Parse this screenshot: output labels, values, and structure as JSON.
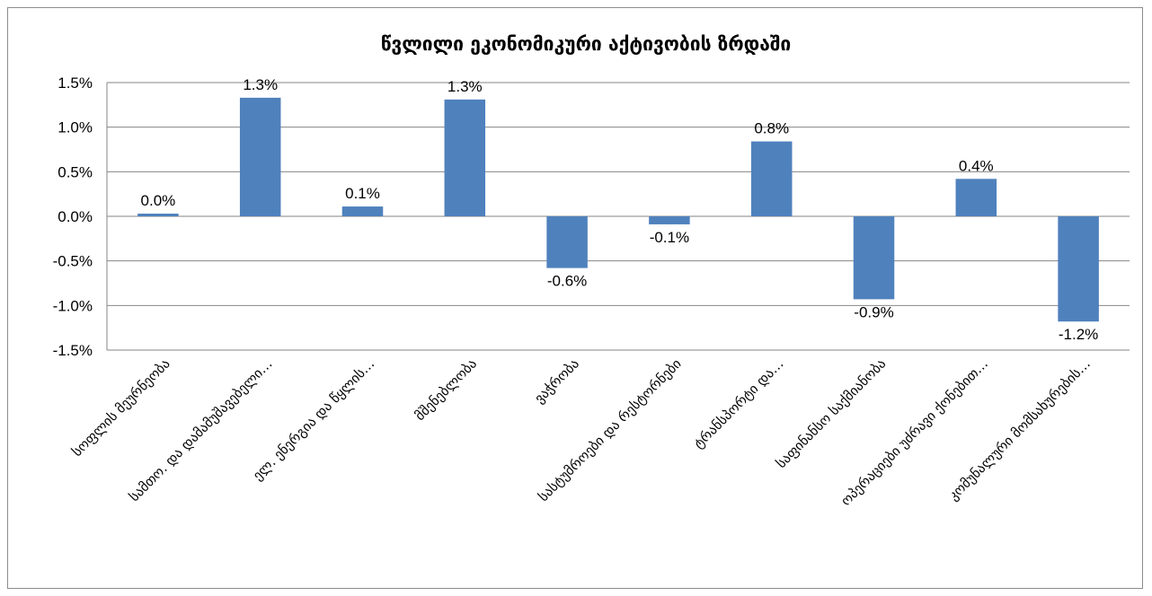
{
  "chart_data": {
    "type": "bar",
    "title": "წვლილი ეკონომიკური აქტივობის ზრდაში",
    "categories": [
      "სოფლის მეურნეობა",
      "სამთო. და დამამუშავებელი…",
      "ელ. ენერგია და წყლის…",
      "მშენებლობა",
      "ვაჭრობა",
      "სასტუმროები და რესტორნები",
      "ტრანსპორტი და…",
      "საფინანსო საქმიანობა",
      "ოპერაციები უძრავი ქონებით…",
      "კომუნალური მომსახურების…"
    ],
    "values": [
      0.03,
      1.33,
      0.11,
      1.31,
      -0.58,
      -0.09,
      0.84,
      -0.93,
      0.42,
      -1.18
    ],
    "data_labels": [
      "0.0%",
      "1.3%",
      "0.1%",
      "1.3%",
      "-0.6%",
      "-0.1%",
      "0.8%",
      "-0.9%",
      "0.4%",
      "-1.2%"
    ],
    "yticks": [
      "1.5%",
      "1.0%",
      "0.5%",
      "0.0%",
      "-0.5%",
      "-1.0%",
      "-1.5%"
    ],
    "ylim": [
      -1.5,
      1.5
    ],
    "grid": true,
    "legend": "none",
    "colors": {
      "bar": "#4f81bd",
      "grid": "#868686"
    }
  }
}
